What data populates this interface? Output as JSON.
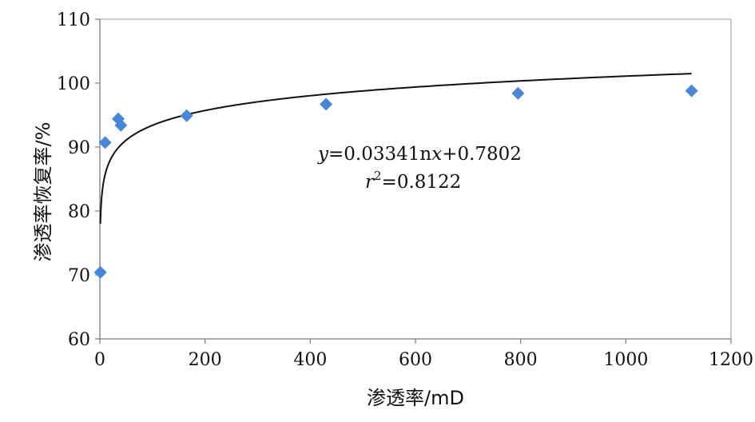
{
  "chart_data": {
    "type": "scatter",
    "title": "",
    "xlabel": "渗透率/mD",
    "ylabel": "渗透率恢复率/%",
    "xlim": [
      0,
      1200
    ],
    "ylim": [
      60,
      110
    ],
    "x_ticks": [
      0,
      200,
      400,
      600,
      800,
      1000,
      1200
    ],
    "y_ticks": [
      60,
      70,
      80,
      90,
      100,
      110
    ],
    "grid": false,
    "legend": "none",
    "marker": "diamond",
    "marker_color": "#4A86D6",
    "series": [
      {
        "points": [
          {
            "x": 1,
            "y": 70.4
          },
          {
            "x": 10,
            "y": 90.7
          },
          {
            "x": 35,
            "y": 94.4
          },
          {
            "x": 40,
            "y": 93.4
          },
          {
            "x": 165,
            "y": 94.9
          },
          {
            "x": 430,
            "y": 96.7
          },
          {
            "x": 795,
            "y": 98.4
          },
          {
            "x": 1125,
            "y": 98.8
          }
        ]
      }
    ],
    "trendline": {
      "type": "logarithmic",
      "a": 0.0334,
      "b": 0.7802,
      "x_range": [
        1,
        1125
      ],
      "color": "#111111"
    },
    "annotations": {
      "equation_y": "y",
      "equation_rest1": "=0.0334",
      "equation_ln": "1n",
      "equation_x": "x",
      "equation_rest2": "+0.7802",
      "r2_r": "r",
      "r2_sup": "2",
      "r2_rest": "=0.8122"
    }
  }
}
